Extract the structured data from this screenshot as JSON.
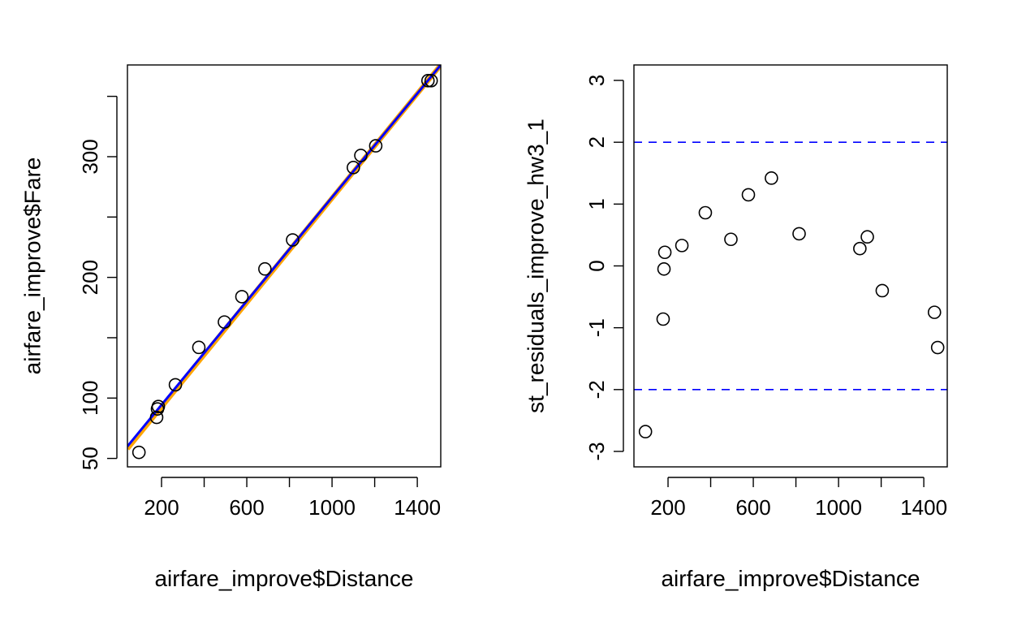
{
  "chart_data": [
    {
      "type": "scatter",
      "title": "",
      "xlabel": "airfare_improve$Distance",
      "ylabel": "airfare_improve$Fare",
      "xlim": [
        40,
        1510
      ],
      "ylim": [
        43,
        376
      ],
      "xticks": [
        200,
        400,
        600,
        800,
        1000,
        1200,
        1400
      ],
      "xtick_labels": [
        "200",
        "600",
        "1000",
        "1400"
      ],
      "yticks": [
        50,
        100,
        150,
        200,
        250,
        300,
        350
      ],
      "ytick_labels": [
        "50",
        "100",
        "200",
        "300"
      ],
      "points": [
        {
          "x": 94,
          "y": 55
        },
        {
          "x": 177,
          "y": 84
        },
        {
          "x": 181,
          "y": 91
        },
        {
          "x": 185,
          "y": 93
        },
        {
          "x": 265,
          "y": 111
        },
        {
          "x": 375,
          "y": 142
        },
        {
          "x": 495,
          "y": 163
        },
        {
          "x": 577,
          "y": 184
        },
        {
          "x": 685,
          "y": 207
        },
        {
          "x": 815,
          "y": 231
        },
        {
          "x": 1100,
          "y": 291
        },
        {
          "x": 1135,
          "y": 301
        },
        {
          "x": 1205,
          "y": 309
        },
        {
          "x": 1450,
          "y": 363
        },
        {
          "x": 1465,
          "y": 363
        }
      ],
      "lines": [
        {
          "color": "#ffa500",
          "width": 6,
          "x": [
            40,
            1510
          ],
          "y": [
            58,
            376
          ]
        },
        {
          "color": "#0000ff",
          "width": 3,
          "x": [
            40,
            1510
          ],
          "y": [
            60,
            376
          ]
        }
      ]
    },
    {
      "type": "scatter",
      "title": "",
      "xlabel": "airfare_improve$Distance",
      "ylabel": "st_residuals_improve_hw3_1",
      "xlim": [
        40,
        1510
      ],
      "ylim": [
        -3.25,
        3.25
      ],
      "xticks": [
        200,
        400,
        600,
        800,
        1000,
        1200,
        1400
      ],
      "xtick_labels": [
        "200",
        "600",
        "1000",
        "1400"
      ],
      "yticks": [
        -3,
        -2,
        -1,
        0,
        1,
        2,
        3
      ],
      "ytick_labels": [
        "-3",
        "-2",
        "-1",
        "0",
        "1",
        "2",
        "3"
      ],
      "reference_lines": [
        {
          "y": 2,
          "color": "#0000ff",
          "style": "dashed"
        },
        {
          "y": -2,
          "color": "#0000ff",
          "style": "dashed"
        }
      ],
      "points": [
        {
          "x": 94,
          "y": -2.68
        },
        {
          "x": 177,
          "y": -0.86
        },
        {
          "x": 181,
          "y": -0.05
        },
        {
          "x": 185,
          "y": 0.22
        },
        {
          "x": 265,
          "y": 0.33
        },
        {
          "x": 375,
          "y": 0.86
        },
        {
          "x": 495,
          "y": 0.43
        },
        {
          "x": 577,
          "y": 1.15
        },
        {
          "x": 685,
          "y": 1.42
        },
        {
          "x": 815,
          "y": 0.52
        },
        {
          "x": 1100,
          "y": 0.28
        },
        {
          "x": 1135,
          "y": 0.47
        },
        {
          "x": 1205,
          "y": -0.4
        },
        {
          "x": 1450,
          "y": -0.75
        },
        {
          "x": 1465,
          "y": -1.32
        }
      ]
    }
  ]
}
